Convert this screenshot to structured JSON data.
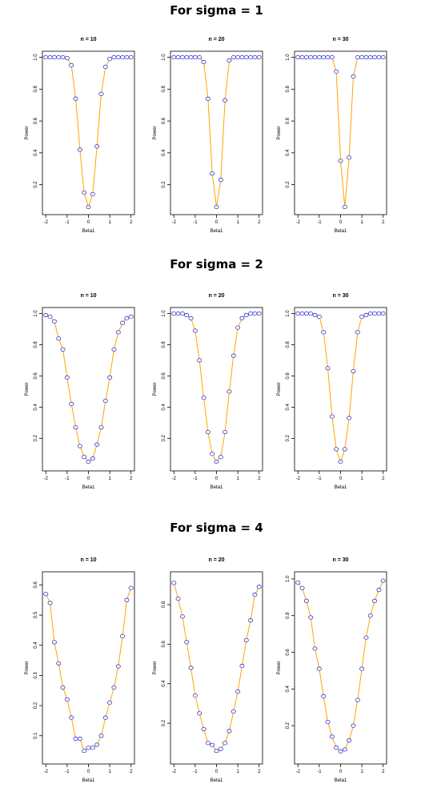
{
  "sections": [
    {
      "title": "For sigma = 1"
    },
    {
      "title": "For sigma = 2"
    },
    {
      "title": "For sigma = 4"
    }
  ],
  "colors": {
    "line": "#FFA500",
    "point": "#3333CC",
    "axis": "#000000"
  },
  "chart_data": [
    {
      "type": "line",
      "title": "n = 10",
      "xlabel": "Beta1",
      "ylabel": "Power",
      "xlim": [
        -2,
        2
      ],
      "ylim": [
        0.05,
        1.0
      ],
      "xticks": [
        -2,
        -1,
        0,
        1,
        2
      ],
      "yticks": [
        0.2,
        0.4,
        0.6,
        0.8,
        1.0
      ],
      "ytick_labels": [
        "0.2",
        "0.4",
        "0.6",
        "0.8",
        "1.0"
      ],
      "x": [
        -2.0,
        -1.8,
        -1.6,
        -1.4,
        -1.2,
        -1.0,
        -0.8,
        -0.6,
        -0.4,
        -0.2,
        0.0,
        0.2,
        0.4,
        0.6,
        0.8,
        1.0,
        1.2,
        1.4,
        1.6,
        1.8,
        2.0
      ],
      "y": [
        1.0,
        1.0,
        1.0,
        1.0,
        1.0,
        0.995,
        0.95,
        0.74,
        0.42,
        0.15,
        0.06,
        0.14,
        0.44,
        0.77,
        0.94,
        0.99,
        1.0,
        1.0,
        1.0,
        1.0,
        1.0
      ]
    },
    {
      "type": "line",
      "title": "n = 20",
      "xlabel": "Beta1",
      "ylabel": "Power",
      "xlim": [
        -2,
        2
      ],
      "ylim": [
        0.05,
        1.0
      ],
      "xticks": [
        -2,
        -1,
        0,
        1,
        2
      ],
      "yticks": [
        0.2,
        0.4,
        0.6,
        0.8,
        1.0
      ],
      "ytick_labels": [
        "0.2",
        "0.4",
        "0.6",
        "0.8",
        "1.0"
      ],
      "x": [
        -2.0,
        -1.8,
        -1.6,
        -1.4,
        -1.2,
        -1.0,
        -0.8,
        -0.6,
        -0.4,
        -0.2,
        0.0,
        0.2,
        0.4,
        0.6,
        0.8,
        1.0,
        1.2,
        1.4,
        1.6,
        1.8,
        2.0
      ],
      "y": [
        1.0,
        1.0,
        1.0,
        1.0,
        1.0,
        1.0,
        1.0,
        0.97,
        0.74,
        0.27,
        0.06,
        0.23,
        0.73,
        0.98,
        1.0,
        1.0,
        1.0,
        1.0,
        1.0,
        1.0,
        1.0
      ]
    },
    {
      "type": "line",
      "title": "n = 30",
      "xlabel": "Beta1",
      "ylabel": "Power",
      "xlim": [
        -2,
        2
      ],
      "ylim": [
        0.05,
        1.0
      ],
      "xticks": [
        -2,
        -1,
        0,
        1,
        2
      ],
      "yticks": [
        0.2,
        0.4,
        0.6,
        0.8,
        1.0
      ],
      "ytick_labels": [
        "0.2",
        "0.4",
        "0.6",
        "0.8",
        "1.0"
      ],
      "x": [
        -2.0,
        -1.8,
        -1.6,
        -1.4,
        -1.2,
        -1.0,
        -0.8,
        -0.6,
        -0.4,
        -0.2,
        0.0,
        0.2,
        0.4,
        0.6,
        0.8,
        1.0,
        1.2,
        1.4,
        1.6,
        1.8,
        2.0
      ],
      "y": [
        1.0,
        1.0,
        1.0,
        1.0,
        1.0,
        1.0,
        1.0,
        1.0,
        1.0,
        0.91,
        0.35,
        0.06,
        0.37,
        0.88,
        1.0,
        1.0,
        1.0,
        1.0,
        1.0,
        1.0,
        1.0
      ]
    },
    {
      "type": "line",
      "title": "n = 10",
      "xlabel": "Beta1",
      "ylabel": "Power",
      "xlim": [
        -2,
        2
      ],
      "ylim": [
        0.03,
        1.0
      ],
      "xticks": [
        -2,
        -1,
        0,
        1,
        2
      ],
      "yticks": [
        0.2,
        0.4,
        0.6,
        0.8,
        1.0
      ],
      "ytick_labels": [
        "0.2",
        "0.4",
        "0.6",
        "0.8",
        "1.0"
      ],
      "x": [
        -2.0,
        -1.8,
        -1.6,
        -1.4,
        -1.2,
        -1.0,
        -0.8,
        -0.6,
        -0.4,
        -0.2,
        0.0,
        0.2,
        0.4,
        0.6,
        0.8,
        1.0,
        1.2,
        1.4,
        1.6,
        1.8,
        2.0
      ],
      "y": [
        0.99,
        0.98,
        0.95,
        0.84,
        0.77,
        0.59,
        0.42,
        0.27,
        0.15,
        0.08,
        0.05,
        0.07,
        0.16,
        0.27,
        0.44,
        0.59,
        0.77,
        0.88,
        0.94,
        0.97,
        0.98
      ]
    },
    {
      "type": "line",
      "title": "n = 20",
      "xlabel": "Beta1",
      "ylabel": "Power",
      "xlim": [
        -2,
        2
      ],
      "ylim": [
        0.03,
        1.0
      ],
      "xticks": [
        -2,
        -1,
        0,
        1,
        2
      ],
      "yticks": [
        0.2,
        0.4,
        0.6,
        0.8,
        1.0
      ],
      "ytick_labels": [
        "0.2",
        "0.4",
        "0.6",
        "0.8",
        "1.0"
      ],
      "x": [
        -2.0,
        -1.8,
        -1.6,
        -1.4,
        -1.2,
        -1.0,
        -0.8,
        -0.6,
        -0.4,
        -0.2,
        0.0,
        0.2,
        0.4,
        0.6,
        0.8,
        1.0,
        1.2,
        1.4,
        1.6,
        1.8,
        2.0
      ],
      "y": [
        1.0,
        1.0,
        1.0,
        0.99,
        0.97,
        0.89,
        0.7,
        0.46,
        0.24,
        0.1,
        0.05,
        0.08,
        0.24,
        0.5,
        0.73,
        0.91,
        0.97,
        0.99,
        1.0,
        1.0,
        1.0
      ]
    },
    {
      "type": "line",
      "title": "n = 30",
      "xlabel": "Beta1",
      "ylabel": "Power",
      "xlim": [
        -2,
        2
      ],
      "ylim": [
        0.03,
        1.0
      ],
      "xticks": [
        -2,
        -1,
        0,
        1,
        2
      ],
      "yticks": [
        0.2,
        0.4,
        0.6,
        0.8,
        1.0
      ],
      "ytick_labels": [
        "0.2",
        "0.4",
        "0.6",
        "0.8",
        "1.0"
      ],
      "x": [
        -2.0,
        -1.8,
        -1.6,
        -1.4,
        -1.2,
        -1.0,
        -0.8,
        -0.6,
        -0.4,
        -0.2,
        0.0,
        0.2,
        0.4,
        0.6,
        0.8,
        1.0,
        1.2,
        1.4,
        1.6,
        1.8,
        2.0
      ],
      "y": [
        1.0,
        1.0,
        1.0,
        1.0,
        0.99,
        0.98,
        0.88,
        0.65,
        0.34,
        0.13,
        0.05,
        0.13,
        0.33,
        0.63,
        0.88,
        0.98,
        0.99,
        1.0,
        1.0,
        1.0,
        1.0
      ]
    },
    {
      "type": "line",
      "title": "n = 10",
      "xlabel": "Beta1",
      "ylabel": "Power",
      "xlim": [
        -2,
        2
      ],
      "ylim": [
        0.03,
        0.62
      ],
      "xticks": [
        -2,
        -1,
        0,
        1,
        2
      ],
      "yticks": [
        0.1,
        0.2,
        0.3,
        0.4,
        0.5,
        0.6
      ],
      "ytick_labels": [
        "0.1",
        "0.2",
        "0.3",
        "0.4",
        "0.5",
        "0.6"
      ],
      "x": [
        -2.0,
        -1.8,
        -1.6,
        -1.4,
        -1.2,
        -1.0,
        -0.8,
        -0.6,
        -0.4,
        -0.2,
        0.0,
        0.2,
        0.4,
        0.6,
        0.8,
        1.0,
        1.2,
        1.4,
        1.6,
        1.8,
        2.0
      ],
      "y": [
        0.57,
        0.54,
        0.41,
        0.34,
        0.26,
        0.22,
        0.16,
        0.09,
        0.09,
        0.05,
        0.06,
        0.06,
        0.07,
        0.1,
        0.16,
        0.21,
        0.26,
        0.33,
        0.43,
        0.55,
        0.59
      ]
    },
    {
      "type": "line",
      "title": "n = 20",
      "xlabel": "Beta1",
      "ylabel": "Power",
      "xlim": [
        -2,
        2
      ],
      "ylim": [
        0.03,
        0.93
      ],
      "xticks": [
        -2,
        -1,
        0,
        1,
        2
      ],
      "yticks": [
        0.2,
        0.4,
        0.6,
        0.8
      ],
      "ytick_labels": [
        "0.2",
        "0.4",
        "0.6",
        "0.8"
      ],
      "x": [
        -2.0,
        -1.8,
        -1.6,
        -1.4,
        -1.2,
        -1.0,
        -0.8,
        -0.6,
        -0.4,
        -0.2,
        0.0,
        0.2,
        0.4,
        0.6,
        0.8,
        1.0,
        1.2,
        1.4,
        1.6,
        1.8,
        2.0
      ],
      "y": [
        0.91,
        0.83,
        0.74,
        0.61,
        0.48,
        0.34,
        0.25,
        0.17,
        0.1,
        0.09,
        0.06,
        0.07,
        0.1,
        0.16,
        0.26,
        0.36,
        0.49,
        0.62,
        0.72,
        0.85,
        0.89
      ]
    },
    {
      "type": "line",
      "title": "n = 30",
      "xlabel": "Beta1",
      "ylabel": "Power",
      "xlim": [
        -2,
        2
      ],
      "ylim": [
        0.03,
        1.0
      ],
      "xticks": [
        -2,
        -1,
        0,
        1,
        2
      ],
      "yticks": [
        0.2,
        0.4,
        0.6,
        0.8,
        1.0
      ],
      "ytick_labels": [
        "0.2",
        "0.4",
        "0.6",
        "0.8",
        "1.0"
      ],
      "x": [
        -2.0,
        -1.8,
        -1.6,
        -1.4,
        -1.2,
        -1.0,
        -0.8,
        -0.6,
        -0.4,
        -0.2,
        0.0,
        0.2,
        0.4,
        0.6,
        0.8,
        1.0,
        1.2,
        1.4,
        1.6,
        1.8,
        2.0
      ],
      "y": [
        0.98,
        0.95,
        0.88,
        0.79,
        0.62,
        0.51,
        0.36,
        0.22,
        0.14,
        0.08,
        0.06,
        0.07,
        0.12,
        0.2,
        0.34,
        0.51,
        0.68,
        0.8,
        0.88,
        0.94,
        0.99
      ]
    }
  ]
}
